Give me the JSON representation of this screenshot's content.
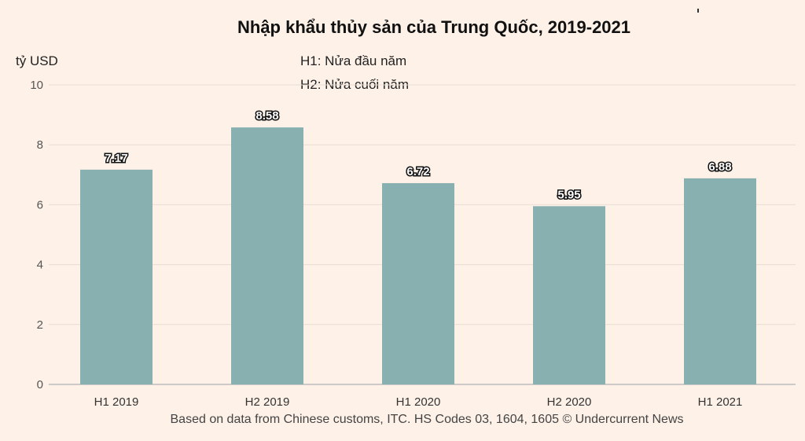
{
  "chart_data": {
    "type": "bar",
    "title": "Nhập khẩu thủy sản của Trung Quốc, 2019-2021",
    "ylabel": "tỷ USD",
    "xlabel": "",
    "categories": [
      "H1 2019",
      "H2 2019",
      "H1 2020",
      "H2 2020",
      "H1 2021"
    ],
    "values": [
      7.17,
      8.58,
      6.72,
      5.95,
      6.88
    ],
    "data_labels": [
      "7.17",
      "8.58",
      "6.72",
      "5.95",
      "6.88"
    ],
    "ylim": [
      0,
      10
    ],
    "yticks": [
      0,
      2,
      4,
      6,
      8,
      10
    ],
    "grid": true,
    "bar_color": "#88b0b0",
    "notes": [
      "H1: Nửa đầu năm",
      "H2: Nửa cuối năm"
    ],
    "source": "Based on data from Chinese customs, ITC. HS Codes 03, 1604, 1605 © Undercurrent News"
  }
}
